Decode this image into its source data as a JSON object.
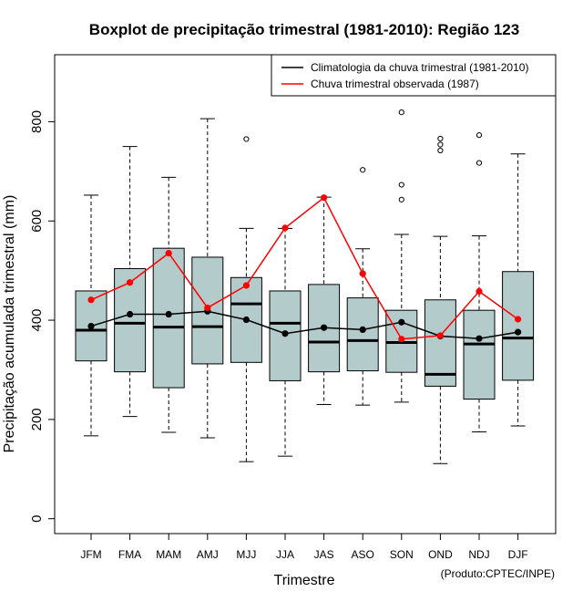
{
  "chart_data": {
    "type": "boxplot",
    "title": "Boxplot de precipitação trimestral (1981-2010): Região 123",
    "xlabel": "Trimestre",
    "ylabel": "Precipitação acumulada trimestral (mm)",
    "credit": "(Produto:CPTEC/INPE)",
    "ylim": [
      -30,
      935
    ],
    "yticks": [
      0,
      200,
      400,
      600,
      800
    ],
    "categories": [
      "JFM",
      "FMA",
      "MAM",
      "AMJ",
      "MJJ",
      "JJA",
      "JAS",
      "ASO",
      "SON",
      "OND",
      "NDJ",
      "DJF"
    ],
    "boxes": [
      {
        "whisker_low": 167,
        "q1": 318,
        "median": 380,
        "q3": 459,
        "whisker_high": 652,
        "outliers": []
      },
      {
        "whisker_low": 206,
        "q1": 296,
        "median": 394,
        "q3": 504,
        "whisker_high": 750,
        "outliers": []
      },
      {
        "whisker_low": 174,
        "q1": 264,
        "median": 386,
        "q3": 545,
        "whisker_high": 688,
        "outliers": []
      },
      {
        "whisker_low": 163,
        "q1": 312,
        "median": 387,
        "q3": 527,
        "whisker_high": 806,
        "outliers": []
      },
      {
        "whisker_low": 115,
        "q1": 315,
        "median": 433,
        "q3": 486,
        "whisker_high": 585,
        "outliers": [
          765
        ]
      },
      {
        "whisker_low": 126,
        "q1": 278,
        "median": 394,
        "q3": 459,
        "whisker_high": 585,
        "outliers": []
      },
      {
        "whisker_low": 230,
        "q1": 296,
        "median": 356,
        "q3": 472,
        "whisker_high": 648,
        "outliers": []
      },
      {
        "whisker_low": 229,
        "q1": 298,
        "median": 359,
        "q3": 445,
        "whisker_high": 544,
        "outliers": [
          703
        ]
      },
      {
        "whisker_low": 235,
        "q1": 295,
        "median": 355,
        "q3": 420,
        "whisker_high": 573,
        "outliers": [
          643,
          673,
          819
        ]
      },
      {
        "whisker_low": 111,
        "q1": 267,
        "median": 291,
        "q3": 441,
        "whisker_high": 569,
        "outliers": [
          742,
          754,
          766
        ]
      },
      {
        "whisker_low": 175,
        "q1": 241,
        "median": 352,
        "q3": 420,
        "whisker_high": 570,
        "outliers": [
          717,
          773
        ]
      },
      {
        "whisker_low": 187,
        "q1": 279,
        "median": 364,
        "q3": 498,
        "whisker_high": 735,
        "outliers": []
      }
    ],
    "series": [
      {
        "name": "Climatologia da chuva trimestral (1981-2010)",
        "color": "#000000",
        "values": [
          388,
          412,
          412,
          418,
          401,
          373,
          385,
          381,
          396,
          368,
          363,
          376
        ]
      },
      {
        "name": "Chuva trimestral observada (1987)",
        "color": "#ff0000",
        "values": [
          441,
          476,
          535,
          425,
          470,
          586,
          647,
          494,
          362,
          369,
          458,
          402
        ]
      }
    ],
    "box_fill": "#b4cbcb",
    "legend_position": "top-right"
  }
}
